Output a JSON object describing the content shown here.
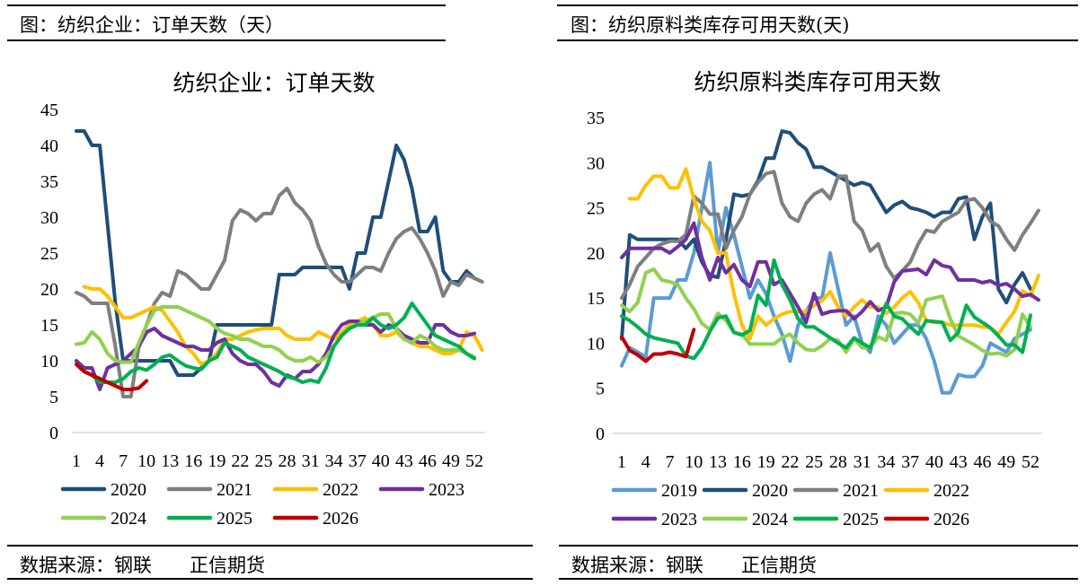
{
  "left": {
    "caption": "图：纺织企业：订单天数（天）",
    "source": "数据来源：钢联　　正信期货"
  },
  "right": {
    "caption": "图：纺织原料类库存可用天数(天)",
    "source": "数据来源：钢联　　正信期货"
  },
  "colors": {
    "2019": "#5B9BD5",
    "2020": "#1F4E79",
    "2021": "#7F7F7F",
    "2022": "#FFC000",
    "2023": "#7030A0",
    "2024": "#92D050",
    "2025": "#00B050",
    "2026": "#C00000"
  },
  "chart_data": [
    {
      "type": "line",
      "title": "纺织企业：订单天数",
      "xlabel": "",
      "ylabel": "",
      "ylim": [
        0,
        45
      ],
      "yticks": [
        0,
        5,
        10,
        15,
        20,
        25,
        30,
        35,
        40,
        45
      ],
      "xticks": [
        1,
        4,
        7,
        10,
        13,
        16,
        19,
        22,
        25,
        28,
        31,
        34,
        37,
        40,
        43,
        46,
        49,
        52
      ],
      "grid": false,
      "legend": "bottom",
      "series": [
        {
          "name": "2020",
          "values": [
            42,
            42,
            40,
            40,
            29,
            18,
            10,
            10,
            10,
            10,
            10,
            10,
            10,
            8,
            8,
            8,
            9,
            10,
            15,
            15,
            15,
            15,
            15,
            15,
            15,
            15,
            22,
            22,
            22,
            23,
            23,
            23,
            23,
            23,
            23,
            20,
            25,
            25,
            30,
            30,
            35,
            40,
            38,
            34,
            28,
            28,
            30,
            22.5,
            21,
            21,
            22.5,
            21.5
          ]
        },
        {
          "name": "2021",
          "values": [
            19.5,
            19,
            18,
            18,
            18,
            12,
            5,
            5,
            12,
            15,
            18,
            19.5,
            19,
            22.5,
            22,
            21,
            20,
            20,
            22,
            24,
            29.5,
            31,
            30.5,
            29.5,
            30.5,
            30.5,
            33,
            34,
            32,
            31,
            29.5,
            26,
            23.5,
            22,
            21,
            21,
            22,
            23,
            23,
            22.5,
            25,
            27,
            28,
            28.5,
            27,
            25,
            22.5,
            19,
            21,
            20.5,
            22,
            21.5,
            21
          ]
        },
        {
          "name": "2022",
          "values": [
            null,
            20.3,
            20,
            20,
            19,
            17.5,
            16,
            16,
            16.5,
            17,
            17.5,
            17,
            15.5,
            14,
            12,
            11,
            9.5,
            10,
            11,
            13,
            13,
            13.5,
            14,
            14.3,
            14.5,
            14.5,
            14.5,
            13.5,
            13,
            13,
            13,
            14,
            13.5,
            13,
            14,
            15,
            15.5,
            16,
            15,
            13.5,
            13.5,
            14,
            13,
            12.5,
            12,
            12,
            11.5,
            11,
            11,
            11.5,
            14,
            13.5,
            11.5
          ]
        },
        {
          "name": "2023",
          "values": [
            10,
            9,
            9,
            6,
            9,
            9.5,
            10,
            11,
            12,
            14,
            14.5,
            13.5,
            13,
            12.5,
            12,
            12,
            11.5,
            11.5,
            12.5,
            13,
            11,
            10,
            9.5,
            9.5,
            8.5,
            7,
            6.5,
            8,
            7.5,
            8.5,
            8.5,
            9.5,
            11,
            13.5,
            15,
            15.5,
            15.5,
            15,
            15,
            14,
            15,
            14.5,
            13.5,
            13,
            12.5,
            12.5,
            15,
            15,
            14,
            13.5,
            13.5,
            13.8
          ]
        },
        {
          "name": "2024",
          "values": [
            12.3,
            12.5,
            14,
            13,
            11,
            10,
            9.8,
            9.8,
            12.5,
            15,
            17,
            17.5,
            17.5,
            17.5,
            17,
            16.5,
            16,
            15.5,
            14.5,
            13.8,
            13.5,
            13,
            13,
            12.5,
            12,
            12,
            11.5,
            10.5,
            10,
            10,
            10.5,
            9.8,
            10.5,
            12,
            13.5,
            14.5,
            15,
            15.5,
            16,
            16.5,
            16.5,
            14.5,
            13,
            12.5,
            13.5,
            13,
            12,
            11.5,
            11.5,
            11.5,
            11,
            10.5
          ]
        },
        {
          "name": "2025",
          "values": [
            9.5,
            8.5,
            8,
            7,
            7,
            7,
            7.5,
            8.5,
            9,
            8.7,
            9.5,
            10.5,
            10.8,
            10,
            9.3,
            9,
            8.8,
            10,
            10.5,
            12.5,
            12,
            11.5,
            10.5,
            10,
            9.5,
            9,
            8.5,
            7.8,
            7.5,
            7,
            7.3,
            7,
            9,
            12,
            13.5,
            14.5,
            15,
            15,
            16,
            15,
            14.5,
            15,
            16,
            18,
            16.5,
            15,
            13.5,
            13,
            12.5,
            12,
            11,
            10.3
          ]
        },
        {
          "name": "2026",
          "values": [
            9.5,
            8.5,
            8,
            7.5,
            7,
            6.5,
            6,
            6,
            6.2,
            7.2
          ]
        }
      ]
    },
    {
      "type": "line",
      "title": "纺织原料类库存可用天数",
      "xlabel": "",
      "ylabel": "",
      "ylim": [
        0,
        35
      ],
      "yticks": [
        0,
        5,
        10,
        15,
        20,
        25,
        30,
        35
      ],
      "xticks": [
        1,
        4,
        7,
        10,
        13,
        16,
        19,
        22,
        25,
        28,
        31,
        34,
        37,
        40,
        43,
        46,
        49,
        52
      ],
      "grid": false,
      "legend": "bottom",
      "series": [
        {
          "name": "2019",
          "values": [
            7.5,
            9.5,
            9,
            8.5,
            15,
            15,
            15,
            17,
            17,
            20,
            25,
            30,
            20,
            25,
            22,
            18.5,
            15,
            17,
            15.5,
            13,
            11,
            8,
            12,
            13.5,
            15,
            15,
            20,
            16,
            12,
            13,
            10,
            9,
            13,
            12,
            10,
            11,
            12,
            12,
            10.5,
            8,
            4.5,
            4.5,
            6.5,
            6.3,
            6.3,
            7.5,
            10,
            9.5,
            9,
            10.5,
            11,
            11.5
          ]
        },
        {
          "name": "2020",
          "values": [
            10.5,
            22,
            21.5,
            21.5,
            21.5,
            21.5,
            21.5,
            21.5,
            20.5,
            21.5,
            19,
            17.5,
            17.3,
            21.5,
            26.5,
            26.3,
            26.5,
            28,
            30.5,
            30.5,
            33.5,
            33.3,
            32.2,
            31.5,
            29.5,
            29.5,
            29,
            28.5,
            28,
            27.5,
            27.8,
            27.5,
            26,
            24.5,
            25.3,
            25.7,
            25,
            24.8,
            24.5,
            24,
            24.5,
            24.5,
            26,
            26.2,
            21.5,
            24,
            25.5,
            16,
            14.5,
            16.5,
            17.8,
            16
          ]
        },
        {
          "name": "2021",
          "values": [
            15,
            16.5,
            18.5,
            19.5,
            20.5,
            21,
            21.3,
            21.3,
            22,
            26.3,
            25.5,
            24.3,
            24.3,
            20.5,
            22.5,
            24,
            26.5,
            27.8,
            28.8,
            29,
            25.5,
            24,
            23.5,
            25.5,
            26.5,
            27,
            26,
            28.5,
            28.5,
            23.5,
            22.5,
            20.2,
            21,
            18.5,
            17.2,
            18,
            19,
            21,
            22.5,
            22.3,
            23.5,
            24,
            24.5,
            25.8,
            26,
            25,
            23.5,
            23,
            21.5,
            20.3,
            22,
            23.3,
            24.7
          ]
        },
        {
          "name": "2022",
          "values": [
            null,
            26,
            26,
            27.5,
            28.5,
            28.5,
            27.2,
            27.2,
            29.3,
            26,
            23.5,
            22.5,
            20,
            20,
            15.5,
            12,
            10.5,
            13,
            12,
            12.7,
            13.2,
            13.5,
            13.5,
            13.5,
            14.2,
            14.7,
            15.7,
            14,
            13,
            14,
            14.8,
            14,
            14,
            13.3,
            14,
            15,
            15.7,
            14.5,
            12.5,
            12.3,
            12.3,
            12,
            12,
            12,
            12,
            11.8,
            11.7,
            11,
            12.3,
            13.5,
            15.8,
            15.2,
            17.5
          ]
        },
        {
          "name": "2023",
          "values": [
            19.5,
            20.5,
            20.5,
            20.5,
            20.5,
            20.5,
            20,
            20.7,
            21.5,
            23.3,
            19.5,
            17,
            19.5,
            17.8,
            18.7,
            17,
            16.3,
            19,
            19,
            16.5,
            17,
            15.5,
            14,
            12.3,
            15.5,
            13.2,
            13.5,
            13.6,
            13.6,
            12.7,
            13.5,
            14.6,
            13.6,
            14,
            16.8,
            18,
            18.1,
            18.2,
            17.6,
            19.2,
            18.6,
            18.4,
            17,
            17,
            17,
            16.7,
            16.9,
            16.4,
            16.6,
            16,
            15.2,
            15.4,
            14.8
          ]
        },
        {
          "name": "2024",
          "values": [
            14.2,
            13.5,
            14.5,
            17.8,
            18.2,
            17,
            16.8,
            16.5,
            15,
            13.8,
            12.2,
            11.5,
            13.3,
            12.5,
            11.2,
            11,
            9.9,
            9.9,
            9.9,
            9.9,
            10.6,
            11,
            10,
            9.3,
            9.2,
            9.7,
            10.5,
            10.3,
            9,
            10.5,
            9.5,
            9.5,
            10.7,
            10.3,
            13.3,
            13.4,
            13.2,
            12.2,
            14.8,
            15,
            15.2,
            12.7,
            10.8,
            10.3,
            9.8,
            9.2,
            8.8,
            8.9,
            8.6,
            9.3,
            13.2,
            11.8
          ]
        },
        {
          "name": "2025",
          "values": [
            13,
            12.5,
            11.8,
            11,
            10.6,
            10.4,
            10.2,
            10,
            8.6,
            8.3,
            9.5,
            11.3,
            12.8,
            13,
            11.2,
            10.9,
            11.4,
            15.3,
            14.2,
            19.2,
            16.5,
            14.8,
            12.7,
            11.8,
            11.8,
            11.2,
            10.6,
            10,
            9.5,
            10.6,
            10,
            9.5,
            11.8,
            14.4,
            13,
            12.7,
            11.8,
            11,
            12.5,
            12.4,
            12.3,
            10.3,
            11.2,
            14.2,
            12.9,
            12.3,
            11.7,
            10.8,
            9.8,
            9.8,
            9,
            13.1
          ]
        },
        {
          "name": "2026",
          "values": [
            10.7,
            9.2,
            8.7,
            8,
            8.8,
            8.8,
            9,
            8.8,
            8.5,
            11.5
          ]
        }
      ]
    }
  ]
}
